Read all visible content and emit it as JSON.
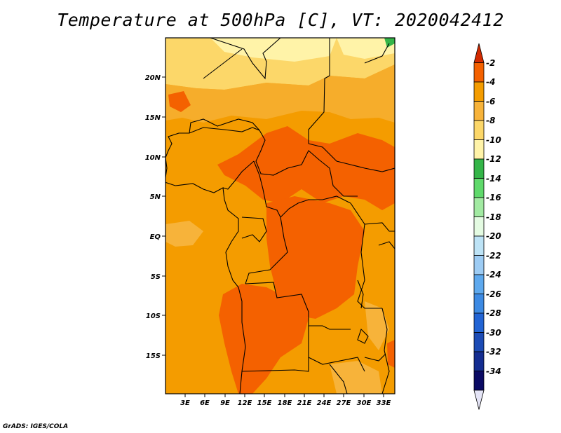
{
  "title": "Temperature at 500hPa [C], VT: 2020042412",
  "credit": "GrADS: IGES/COLA",
  "map": {
    "lat_labels": [
      "20N",
      "15N",
      "10N",
      "5N",
      "EQ",
      "5S",
      "10S",
      "15S"
    ],
    "lon_labels": [
      "3E",
      "6E",
      "9E",
      "12E",
      "15E",
      "18E",
      "21E",
      "24E",
      "27E",
      "30E",
      "33E"
    ]
  },
  "colorbar": {
    "levels": [
      "-2",
      "-4",
      "-6",
      "-8",
      "-10",
      "-12",
      "-14",
      "-16",
      "-18",
      "-20",
      "-22",
      "-24",
      "-26",
      "-28",
      "-30",
      "-32",
      "-34"
    ],
    "colors": [
      "#d22a00",
      "#f46100",
      "#f49c00",
      "#f7b33a",
      "#fcd769",
      "#fff3a8",
      "#34b548",
      "#5fd96b",
      "#a2eaa2",
      "#e4fbe2",
      "#bde3f6",
      "#9dccf4",
      "#5ea9ee",
      "#3d8ae3",
      "#2264d4",
      "#1c4bb5",
      "#142d91",
      "#0a0a64",
      "#e4e4f6"
    ]
  },
  "chart_data": {
    "type": "heatmap",
    "title": "Temperature at 500hPa [C], VT: 2020042412",
    "variable": "Temperature at 500hPa",
    "units": "C",
    "valid_time": "2020042412",
    "x_ticks": [
      "3E",
      "6E",
      "9E",
      "12E",
      "15E",
      "18E",
      "21E",
      "24E",
      "27E",
      "30E",
      "33E"
    ],
    "y_ticks": [
      "20N",
      "15N",
      "10N",
      "5N",
      "EQ",
      "5S",
      "10S",
      "15S"
    ],
    "xlim": [
      0,
      34
    ],
    "ylim": [
      -20,
      25
    ],
    "contour_levels": [
      -2,
      -4,
      -6,
      -8,
      -10,
      -12,
      -14,
      -16,
      -18,
      -20,
      -22,
      -24,
      -26,
      -28,
      -30,
      -32,
      -34
    ],
    "dominant_range": [
      -8,
      -4
    ]
  }
}
